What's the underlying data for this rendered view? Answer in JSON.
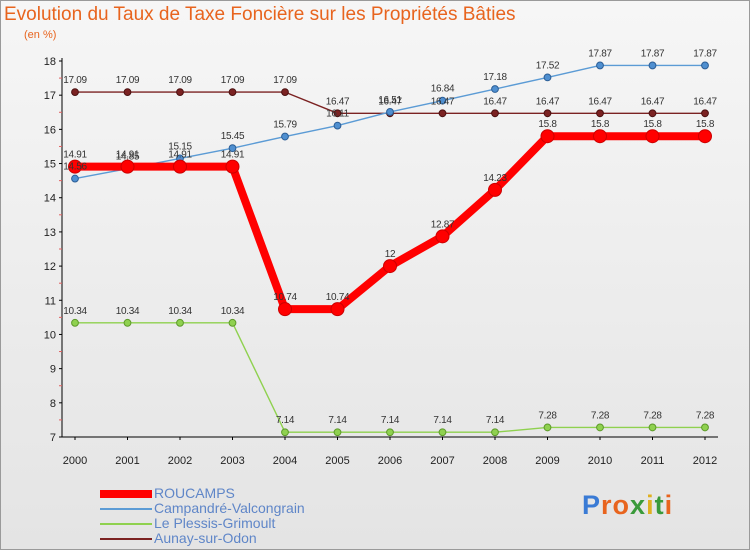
{
  "title": "Evolution du Taux de Taxe Foncière sur les Propriétés Bâties",
  "unit_label": "(en %)",
  "brand": {
    "text": "Proxiti",
    "letter_colors": [
      "#3a7bd5",
      "#e8641e",
      "#e8641e",
      "#3a9a3a",
      "#e0b020",
      "#3a9a3a",
      "#e8641e"
    ]
  },
  "chart_data": {
    "type": "line",
    "title": "Evolution du Taux de Taxe Foncière sur les Propriétés Bâties",
    "xlabel": "",
    "ylabel": "(en %)",
    "x": [
      "2000",
      "2001",
      "2002",
      "2003",
      "2004",
      "2005",
      "2006",
      "2007",
      "2008",
      "2009",
      "2010",
      "2011",
      "2012"
    ],
    "ylim": [
      7,
      18
    ],
    "yticks": [
      "7",
      "8",
      "9",
      "10",
      "11",
      "12",
      "13",
      "14",
      "15",
      "16",
      "17",
      "18"
    ],
    "grid": false,
    "series": [
      {
        "name": "Aunay-sur-Odon",
        "color": "#7b2222",
        "values": [
          17.09,
          17.09,
          17.09,
          17.09,
          17.09,
          16.47,
          16.47,
          16.47,
          16.47,
          16.47,
          16.47,
          16.47,
          16.47
        ],
        "labels": [
          "17.09",
          "17.09",
          "17.09",
          "17.09",
          "17.09",
          "16.47",
          "16.47",
          "16.47",
          "16.47",
          "16.47",
          "16.47",
          "16.47",
          "16.47"
        ]
      },
      {
        "name": "Le Plessis-Grimoult",
        "color": "#8fd14f",
        "values": [
          10.34,
          10.34,
          10.34,
          10.34,
          7.14,
          7.14,
          7.14,
          7.14,
          7.14,
          7.28,
          7.28,
          7.28,
          7.28
        ],
        "labels": [
          "10.34",
          "10.34",
          "10.34",
          "10.34",
          "7.14",
          "7.14",
          "7.14",
          "7.14",
          "7.14",
          "7.28",
          "7.28",
          "7.28",
          "7.28"
        ]
      },
      {
        "name": "Campandré-Valcongrain",
        "color": "#5b9bd5",
        "values": [
          14.56,
          14.85,
          15.15,
          15.45,
          15.79,
          16.11,
          16.51,
          16.84,
          17.18,
          17.52,
          17.87,
          17.87,
          17.87
        ],
        "labels": [
          "14.56",
          "14.85",
          "15.15",
          "15.45",
          "15.79",
          "16.11",
          "16.51",
          "16.84",
          "17.18",
          "17.52",
          "17.87",
          "17.87",
          "17.87"
        ]
      },
      {
        "name": "ROUCAMPS",
        "color": "#ff0000",
        "values": [
          14.91,
          14.91,
          14.91,
          14.91,
          10.74,
          10.74,
          12,
          12.87,
          14.23,
          15.8,
          15.8,
          15.8,
          15.8
        ],
        "labels": [
          "14.91",
          "14.91",
          "14.91",
          "14.91",
          "10.74",
          "10.74",
          "12",
          "12.87",
          "14.23",
          "15.8",
          "15.8",
          "15.8",
          "15.8"
        ]
      }
    ],
    "legend": [
      "ROUCAMPS",
      "Campandré-Valcongrain",
      "Le Plessis-Grimoult",
      "Aunay-sur-Odon"
    ],
    "legend_position": "bottom-left"
  }
}
